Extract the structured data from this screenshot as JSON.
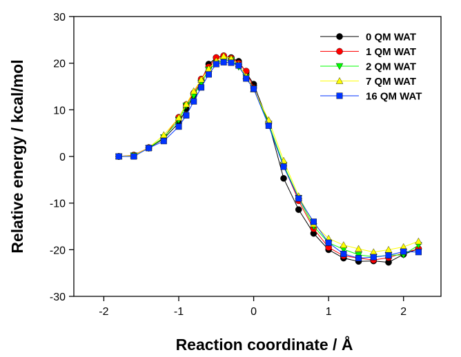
{
  "chart_data": {
    "type": "line",
    "xlabel": "Reaction coordinate / Å",
    "ylabel": "Relative energy / kcal/mol",
    "xlim": [
      -2.4,
      2.5
    ],
    "ylim": [
      -30,
      30
    ],
    "xticks": [
      -2,
      -1,
      0,
      1,
      2
    ],
    "yticks": [
      -30,
      -20,
      -10,
      0,
      10,
      20,
      30
    ],
    "xtick_labels": [
      "-2",
      "-1",
      "0",
      "1",
      "2"
    ],
    "ytick_labels": [
      "-30",
      "-20",
      "-10",
      "0",
      "10",
      "20",
      "30"
    ],
    "grid": false,
    "legend_position": "top-right",
    "x": [
      -1.8,
      -1.6,
      -1.4,
      -1.2,
      -1.0,
      -0.9,
      -0.8,
      -0.7,
      -0.6,
      -0.5,
      -0.4,
      -0.3,
      -0.2,
      -0.1,
      0.0,
      0.2,
      0.4,
      0.6,
      0.8,
      1.0,
      1.2,
      1.4,
      1.6,
      1.8,
      2.0,
      2.2
    ],
    "series": [
      {
        "name": "0 QM WAT",
        "color": "#000000",
        "marker": "circle",
        "values": [
          0.0,
          0.1,
          1.8,
          3.8,
          7.2,
          10.2,
          13.0,
          16.2,
          19.8,
          21.2,
          21.5,
          21.2,
          20.4,
          18.0,
          15.5,
          7.2,
          -4.7,
          -11.4,
          -16.5,
          -20.0,
          -21.8,
          -22.5,
          -22.4,
          -22.7,
          -21.0,
          -19.8
        ]
      },
      {
        "name": "1 QM WAT",
        "color": "#ff0000",
        "marker": "circle",
        "values": [
          0.0,
          0.3,
          1.9,
          4.0,
          8.4,
          11.1,
          13.6,
          16.6,
          19.2,
          21.2,
          21.6,
          21.1,
          20.0,
          18.3,
          14.7,
          7.0,
          -2.0,
          -9.5,
          -15.5,
          -19.5,
          -21.3,
          -21.8,
          -22.2,
          -21.7,
          -20.7,
          -19.8
        ]
      },
      {
        "name": "2 QM WAT",
        "color": "#00ff00",
        "marker": "triangle-down",
        "values": [
          0.0,
          0.2,
          1.8,
          4.1,
          7.8,
          10.9,
          13.0,
          15.8,
          18.6,
          20.0,
          20.6,
          20.7,
          19.2,
          17.0,
          14.6,
          7.0,
          -1.8,
          -8.9,
          -15.0,
          -18.5,
          -19.9,
          -21.1,
          -21.5,
          -21.2,
          -21.1,
          -19.0
        ]
      },
      {
        "name": "7 QM WAT",
        "color": "#ffff00",
        "marker": "triangle-up",
        "values": [
          0.0,
          0.2,
          1.9,
          4.6,
          8.3,
          11.2,
          14.0,
          16.5,
          18.8,
          20.5,
          21.5,
          21.0,
          19.8,
          17.2,
          14.4,
          7.8,
          -0.9,
          -8.5,
          -14.5,
          -17.6,
          -19.0,
          -19.8,
          -20.5,
          -20.0,
          -19.4,
          -18.2
        ]
      },
      {
        "name": "16 QM WAT",
        "color": "#0033ff",
        "marker": "square",
        "values": [
          0.0,
          0.0,
          1.8,
          3.3,
          6.4,
          8.8,
          11.8,
          14.8,
          17.6,
          19.8,
          20.2,
          20.1,
          19.5,
          16.7,
          14.5,
          6.6,
          -2.2,
          -9.0,
          -14.0,
          -18.5,
          -20.9,
          -21.8,
          -21.6,
          -21.2,
          -20.4,
          -20.5
        ]
      }
    ]
  }
}
